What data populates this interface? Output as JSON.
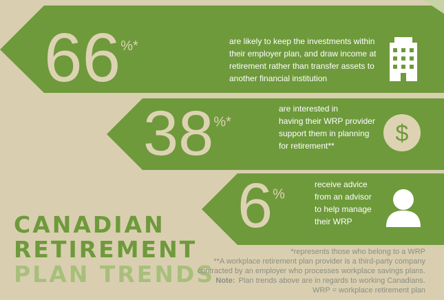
{
  "stats": [
    {
      "number": "66",
      "suffix": "%*",
      "lines": [
        "are likely to keep the investments within",
        "their employer plan, and draw income at",
        "retirement rather than transfer assets to",
        "another financial institution"
      ]
    },
    {
      "number": "38",
      "suffix": "%*",
      "lines": [
        "are interested in",
        "having their WRP provider",
        "support them in planning",
        "for retirement**"
      ]
    },
    {
      "number": "6",
      "suffix": "%",
      "lines": [
        "receive advice",
        "from an advisor",
        "to help manage",
        "their WRP"
      ]
    }
  ],
  "title": [
    "CANADIAN",
    "RETIREMENT",
    "PLAN TRENDS"
  ],
  "footnotes": {
    "line1": "*represents those who belong to a WRP",
    "line2": "**A workplace retirement plan provider is a third-party company",
    "line3": "contracted by an employer who processes workplace savings plans.",
    "note_label": "Note:",
    "note_text": "Plan trends above are in regards to working Canadians.",
    "line5": "WRP = workplace retirement plan"
  }
}
